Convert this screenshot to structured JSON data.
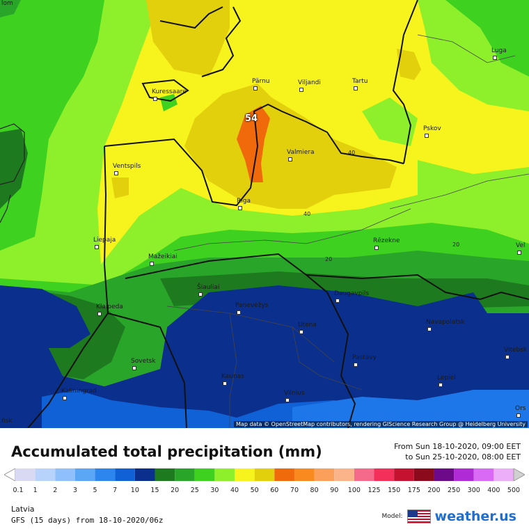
{
  "map": {
    "attribution": "Map data © OpenStreetMap contributors, rendering GIScience Research Group @ Heidelberg University",
    "max_value_label": "54",
    "contour_labels": [
      "40",
      "40",
      "20",
      "20"
    ],
    "cities": [
      {
        "name": "Pärnu"
      },
      {
        "name": "Viljandi"
      },
      {
        "name": "Tartu"
      },
      {
        "name": "Luga"
      },
      {
        "name": "Kuressaare"
      },
      {
        "name": "Pskov"
      },
      {
        "name": "Valmiera"
      },
      {
        "name": "Ventspils"
      },
      {
        "name": "Riga"
      },
      {
        "name": "Liepaja"
      },
      {
        "name": "Rēzekne"
      },
      {
        "name": "Mažeikiai"
      },
      {
        "name": "Šiauliai"
      },
      {
        "name": "Daugavpils"
      },
      {
        "name": "Klaipeda"
      },
      {
        "name": "Panevėžys"
      },
      {
        "name": "Navapolatsk"
      },
      {
        "name": "Utena"
      },
      {
        "name": "Vitebsk"
      },
      {
        "name": "Sovetsk"
      },
      {
        "name": "Pastavy"
      },
      {
        "name": "Kaunas"
      },
      {
        "name": "Lepiel"
      },
      {
        "name": "Kaliningrad"
      },
      {
        "name": "Vilnius"
      },
      {
        "name": "Ors"
      },
      {
        "name": "Vel"
      },
      {
        "name": "ńsk"
      },
      {
        "name": "lom"
      }
    ]
  },
  "legend": {
    "title": "Accumulated total precipitation (mm)",
    "from": "From Sun 18-10-2020, 09:00 EET",
    "to": "to Sun 25-10-2020, 08:00 EET",
    "region": "Latvia",
    "model_info": "GFS (15 days) from  18-10-2020/06z",
    "model_label": "Model:",
    "brand": "weather.us",
    "scale_labels": [
      "0.1",
      "1",
      "2",
      "3",
      "5",
      "7",
      "10",
      "15",
      "20",
      "25",
      "30",
      "40",
      "50",
      "60",
      "70",
      "80",
      "90",
      "100",
      "125",
      "150",
      "175",
      "200",
      "250",
      "300",
      "400",
      "500"
    ],
    "scale_colors": [
      "#d9d9f3",
      "#b7d2fb",
      "#8fc0fb",
      "#5ba6f5",
      "#2d86ee",
      "#1060d6",
      "#0b2f8c",
      "#1e7a1e",
      "#29a629",
      "#3fd11f",
      "#8ef02a",
      "#f7f31c",
      "#e2d00c",
      "#f06a0c",
      "#f98a1f",
      "#fba05a",
      "#fbb48a",
      "#f56a8a",
      "#f2305a",
      "#c41230",
      "#8b0a1c",
      "#6c0a8a",
      "#b02ad6",
      "#d86af5",
      "#ecaef9",
      "#f8dffc",
      "#d0d0d0"
    ]
  }
}
